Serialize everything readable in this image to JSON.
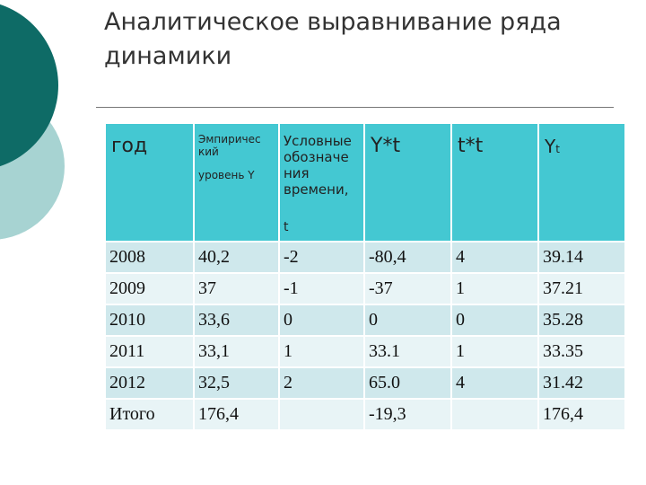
{
  "title": "Аналитическое выравнивание ряда динамики",
  "colors": {
    "dark_teal": "#0e6b66",
    "light_teal": "#a7d3d2",
    "header_fill": "#44c8d2",
    "row_odd": "#cfe8ec",
    "row_even": "#e8f4f6"
  },
  "table": {
    "headers": {
      "year": "год",
      "empirical_line1": "Эмпиричес кий",
      "empirical_line2": "уровень Y",
      "conventional": "Условные обозначе ния времени,",
      "conventional_t": "t",
      "yt": "Y*t",
      "tt": "t*t",
      "yt_fit_main": "Y",
      "yt_fit_sub": "t"
    },
    "rows": [
      [
        "2008",
        "40,2",
        "-2",
        "-80,4",
        "4",
        "39.14"
      ],
      [
        "2009",
        "37",
        "-1",
        "-37",
        "1",
        "37.21"
      ],
      [
        "2010",
        "33,6",
        "0",
        "0",
        "0",
        "35.28"
      ],
      [
        "2011",
        "33,1",
        "1",
        "33.1",
        "1",
        "33.35"
      ],
      [
        "2012",
        "32,5",
        "2",
        "65.0",
        "4",
        "31.42"
      ],
      [
        "Итого",
        "176,4",
        "",
        "-19,3",
        "",
        "176,4"
      ]
    ]
  }
}
